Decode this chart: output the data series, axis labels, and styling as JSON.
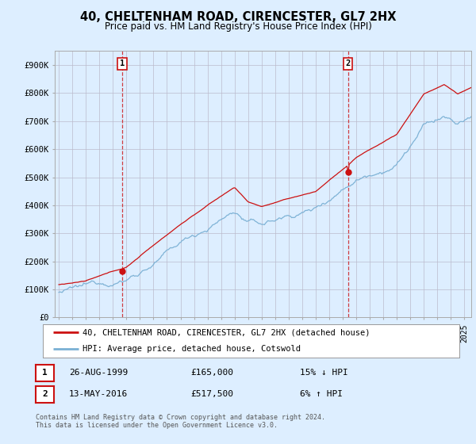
{
  "title": "40, CHELTENHAM ROAD, CIRENCESTER, GL7 2HX",
  "subtitle": "Price paid vs. HM Land Registry's House Price Index (HPI)",
  "ylim": [
    0,
    950000
  ],
  "xlim_start": 1994.7,
  "xlim_end": 2025.5,
  "hpi_color": "#7ab0d4",
  "price_color": "#cc1111",
  "marker1_year": 1999.65,
  "marker1_price": 165000,
  "marker2_year": 2016.37,
  "marker2_price": 517500,
  "legend_entries": [
    "40, CHELTENHAM ROAD, CIRENCESTER, GL7 2HX (detached house)",
    "HPI: Average price, detached house, Cotswold"
  ],
  "note1_num": "1",
  "note1_date": "26-AUG-1999",
  "note1_price": "£165,000",
  "note1_hpi": "15% ↓ HPI",
  "note2_num": "2",
  "note2_date": "13-MAY-2016",
  "note2_price": "£517,500",
  "note2_hpi": "6% ↑ HPI",
  "footnote": "Contains HM Land Registry data © Crown copyright and database right 2024.\nThis data is licensed under the Open Government Licence v3.0.",
  "background_color": "#ddeeff",
  "plot_bg_color": "#ddeeff",
  "grid_color": "#bbbbcc"
}
